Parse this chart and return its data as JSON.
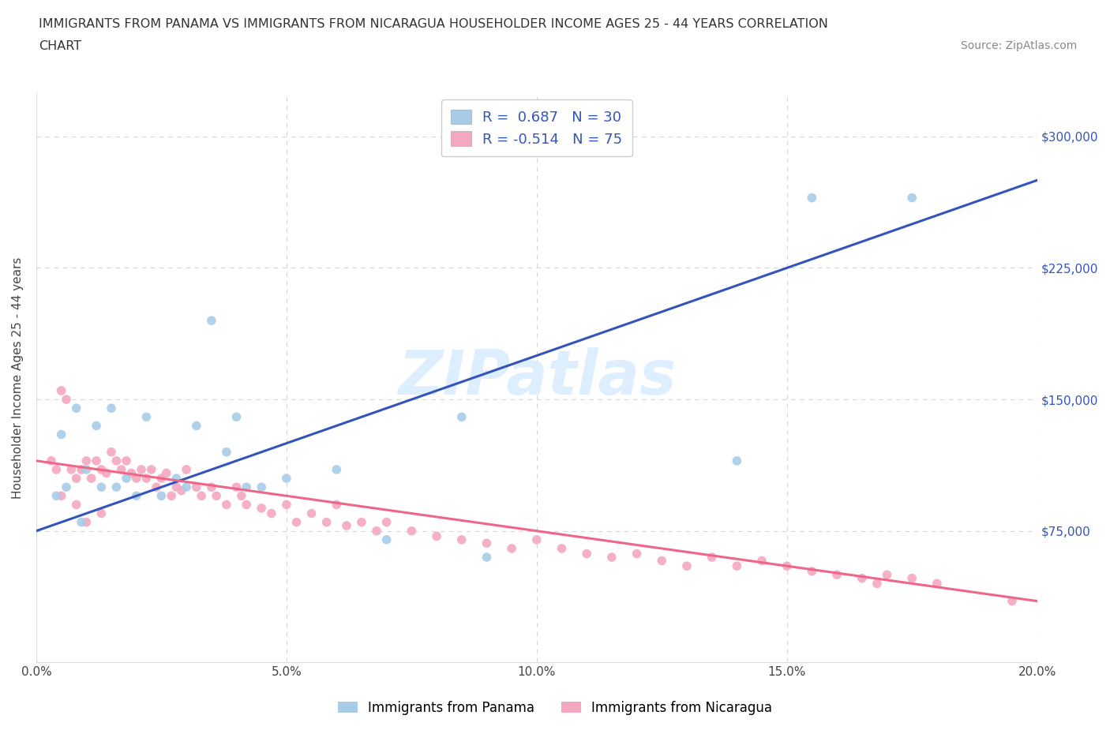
{
  "title_line1": "IMMIGRANTS FROM PANAMA VS IMMIGRANTS FROM NICARAGUA HOUSEHOLDER INCOME AGES 25 - 44 YEARS CORRELATION",
  "title_line2": "CHART",
  "source_text": "Source: ZipAtlas.com",
  "ylabel": "Householder Income Ages 25 - 44 years",
  "xlim": [
    0.0,
    0.2
  ],
  "ylim": [
    0,
    325000
  ],
  "xtick_labels": [
    "0.0%",
    "5.0%",
    "10.0%",
    "15.0%",
    "20.0%"
  ],
  "xtick_values": [
    0.0,
    0.05,
    0.1,
    0.15,
    0.2
  ],
  "ytick_labels": [
    "$75,000",
    "$150,000",
    "$225,000",
    "$300,000"
  ],
  "ytick_values": [
    75000,
    150000,
    225000,
    300000
  ],
  "panama_R": 0.687,
  "panama_N": 30,
  "nicaragua_R": -0.514,
  "nicaragua_N": 75,
  "panama_color": "#a8cce8",
  "nicaragua_color": "#f4a8c0",
  "panama_line_color": "#3355bb",
  "nicaragua_line_color": "#ee6688",
  "watermark_color": "#ddeeff",
  "watermark_text": "ZIPatlas",
  "panama_scatter_x": [
    0.004,
    0.005,
    0.006,
    0.008,
    0.009,
    0.01,
    0.012,
    0.013,
    0.015,
    0.016,
    0.018,
    0.02,
    0.022,
    0.025,
    0.028,
    0.03,
    0.032,
    0.035,
    0.038,
    0.04,
    0.042,
    0.045,
    0.05,
    0.06,
    0.07,
    0.085,
    0.09,
    0.14,
    0.155,
    0.175
  ],
  "panama_scatter_y": [
    95000,
    130000,
    100000,
    145000,
    80000,
    110000,
    135000,
    100000,
    145000,
    100000,
    105000,
    95000,
    140000,
    95000,
    105000,
    100000,
    135000,
    195000,
    120000,
    140000,
    100000,
    100000,
    105000,
    110000,
    70000,
    140000,
    60000,
    115000,
    265000,
    265000
  ],
  "nicaragua_scatter_x": [
    0.003,
    0.004,
    0.005,
    0.006,
    0.007,
    0.008,
    0.009,
    0.01,
    0.011,
    0.012,
    0.013,
    0.014,
    0.015,
    0.016,
    0.017,
    0.018,
    0.019,
    0.02,
    0.021,
    0.022,
    0.023,
    0.024,
    0.025,
    0.026,
    0.027,
    0.028,
    0.029,
    0.03,
    0.032,
    0.033,
    0.035,
    0.036,
    0.038,
    0.04,
    0.041,
    0.042,
    0.045,
    0.047,
    0.05,
    0.052,
    0.055,
    0.058,
    0.06,
    0.062,
    0.065,
    0.068,
    0.07,
    0.075,
    0.08,
    0.085,
    0.09,
    0.095,
    0.1,
    0.105,
    0.11,
    0.115,
    0.12,
    0.125,
    0.13,
    0.135,
    0.14,
    0.145,
    0.15,
    0.155,
    0.16,
    0.165,
    0.168,
    0.17,
    0.175,
    0.18,
    0.005,
    0.008,
    0.01,
    0.013,
    0.195
  ],
  "nicaragua_scatter_y": [
    115000,
    110000,
    155000,
    150000,
    110000,
    105000,
    110000,
    115000,
    105000,
    115000,
    110000,
    108000,
    120000,
    115000,
    110000,
    115000,
    108000,
    105000,
    110000,
    105000,
    110000,
    100000,
    105000,
    108000,
    95000,
    100000,
    98000,
    110000,
    100000,
    95000,
    100000,
    95000,
    90000,
    100000,
    95000,
    90000,
    88000,
    85000,
    90000,
    80000,
    85000,
    80000,
    90000,
    78000,
    80000,
    75000,
    80000,
    75000,
    72000,
    70000,
    68000,
    65000,
    70000,
    65000,
    62000,
    60000,
    62000,
    58000,
    55000,
    60000,
    55000,
    58000,
    55000,
    52000,
    50000,
    48000,
    45000,
    50000,
    48000,
    45000,
    95000,
    90000,
    80000,
    85000,
    35000
  ],
  "panama_line_x0": 0.0,
  "panama_line_y0": 75000,
  "panama_line_x1": 0.2,
  "panama_line_y1": 275000,
  "nicaragua_line_x0": 0.0,
  "nicaragua_line_y0": 115000,
  "nicaragua_line_x1": 0.2,
  "nicaragua_line_y1": 35000
}
